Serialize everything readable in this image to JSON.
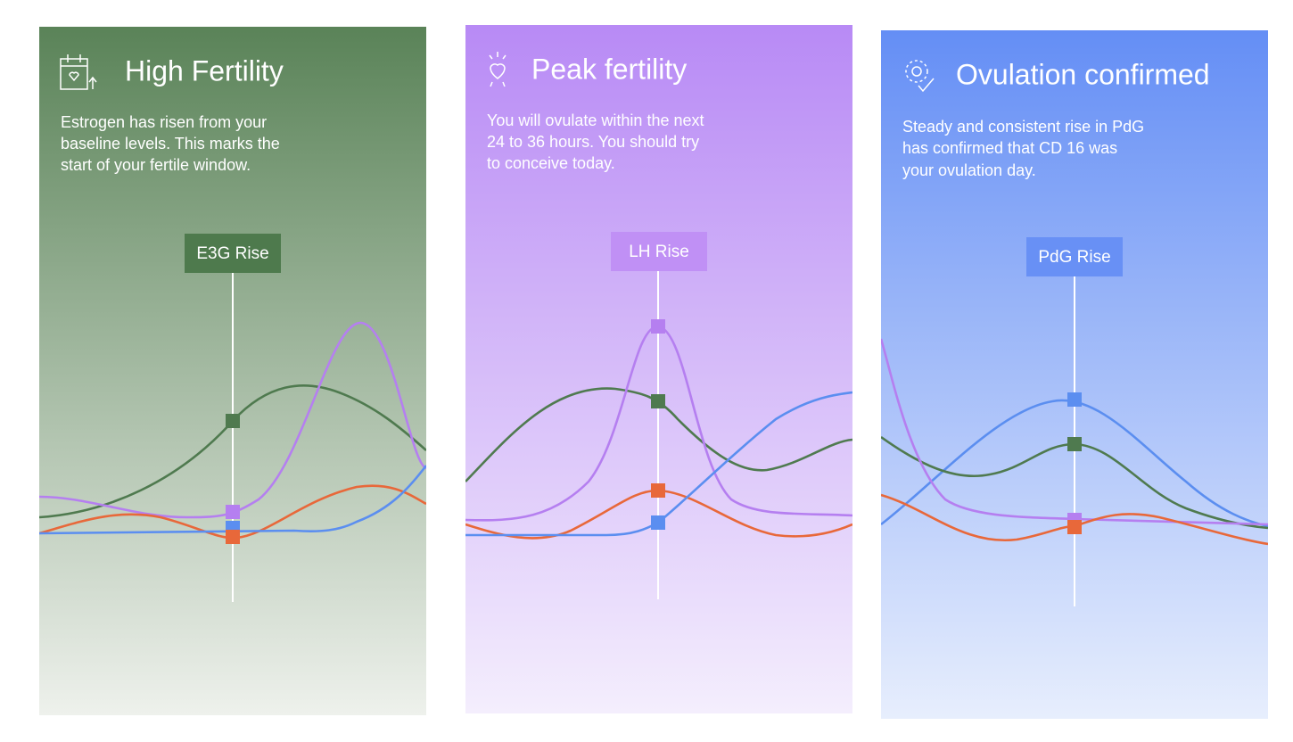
{
  "cards": [
    {
      "title": "High Fertility",
      "body": [
        "Estrogen has risen from your",
        "baseline levels. This marks the",
        "start of your fertile window."
      ],
      "label": "E3G Rise"
    },
    {
      "title": "Peak fertility",
      "body": [
        "You will ovulate within the next",
        "24 to 36 hours. You should try",
        "to conceive today."
      ],
      "label": "LH Rise"
    },
    {
      "title": "Ovulation confirmed",
      "body": [
        "Steady and consistent rise in PdG",
        "has confirmed that CD 16 was",
        "your ovulation day."
      ],
      "label": "PdG Rise"
    }
  ]
}
